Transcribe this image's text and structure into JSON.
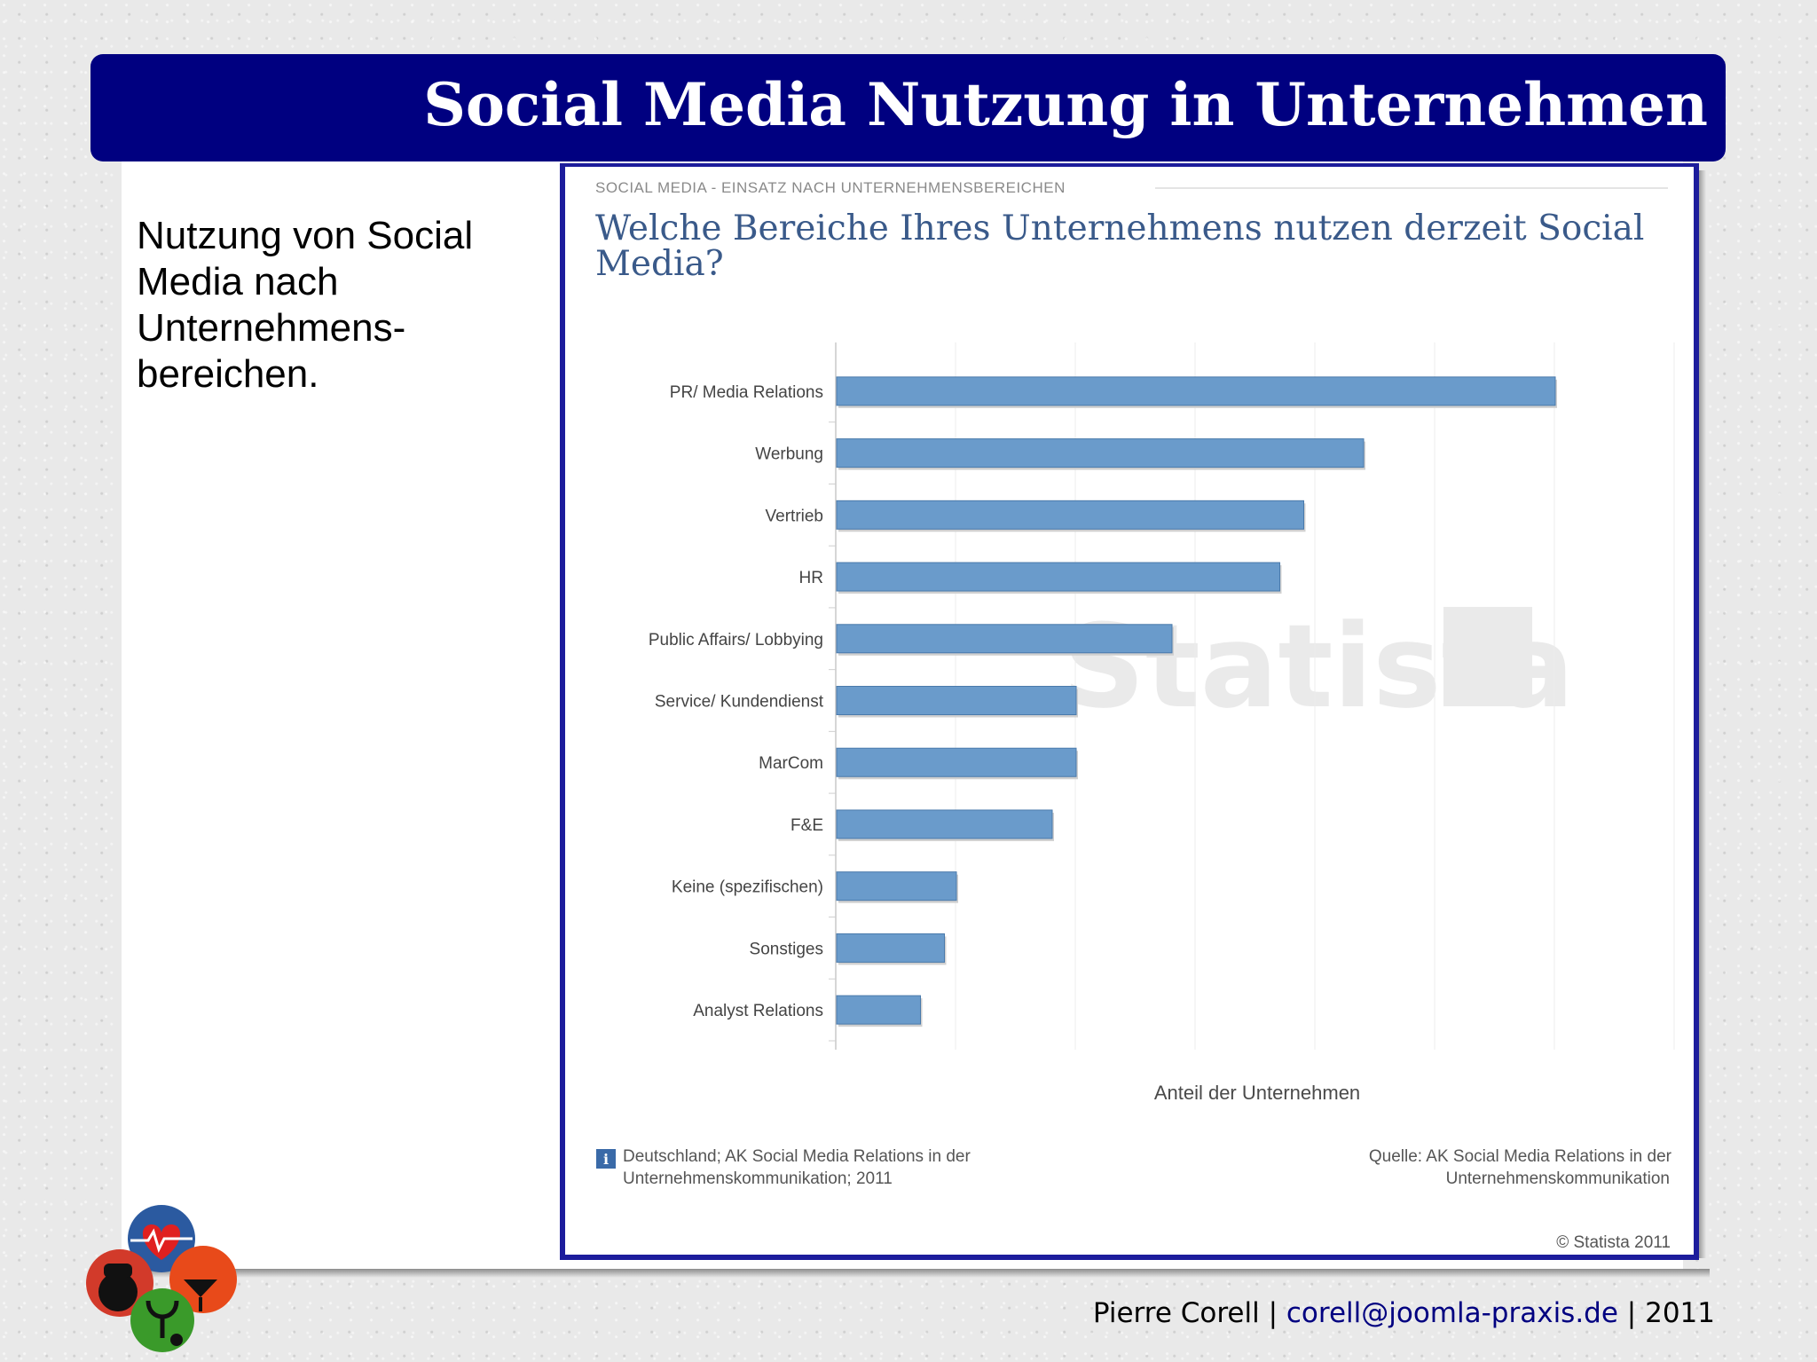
{
  "slide": {
    "title": "Social Media Nutzung in Unternehmen",
    "description_line1": "Nutzung von Social",
    "description_line2": "Media nach",
    "description_line3": "Unternehmens-",
    "description_line4": "bereichen."
  },
  "footer": {
    "author": "Pierre Corell",
    "separator1": " | ",
    "email": "corell@joomla-praxis.de",
    "separator2": " | ",
    "year": "2011"
  },
  "chart_data": {
    "type": "bar",
    "orientation": "horizontal",
    "section_label": "SOCIAL MEDIA - EINSATZ NACH UNTERNEHMENSBEREICHEN",
    "title": "Welche Bereiche Ihres Unternehmens nutzen derzeit Social Media?",
    "title_line1": "Welche Bereiche Ihres Unternehmens nutzen derzeit Social",
    "title_line2": "Media?",
    "xlabel": "Anteil der Unternehmen",
    "watermark": "Statista",
    "note_line1": "Deutschland; AK Social Media Relations in der",
    "note_line2": "Unternehmenskommunikation; 2011",
    "source_line1": "Quelle: AK Social Media Relations in der",
    "source_line2": "Unternehmenskommunikation",
    "copyright": "© Statista 2011",
    "categories": [
      "PR/ Media Relations",
      "Werbung",
      "Vertrieb",
      "HR",
      "Public Affairs/ Lobbying",
      "Service/ Kundendienst",
      "MarCom",
      "F&E",
      "Keine (spezifischen)",
      "Sonstiges",
      "Analyst Relations"
    ],
    "values": [
      60,
      44,
      39,
      37,
      28,
      20,
      20,
      18,
      10,
      9,
      7
    ],
    "xlim": [
      0,
      70
    ],
    "grid": true,
    "bar_color": "#6a9bcb"
  }
}
